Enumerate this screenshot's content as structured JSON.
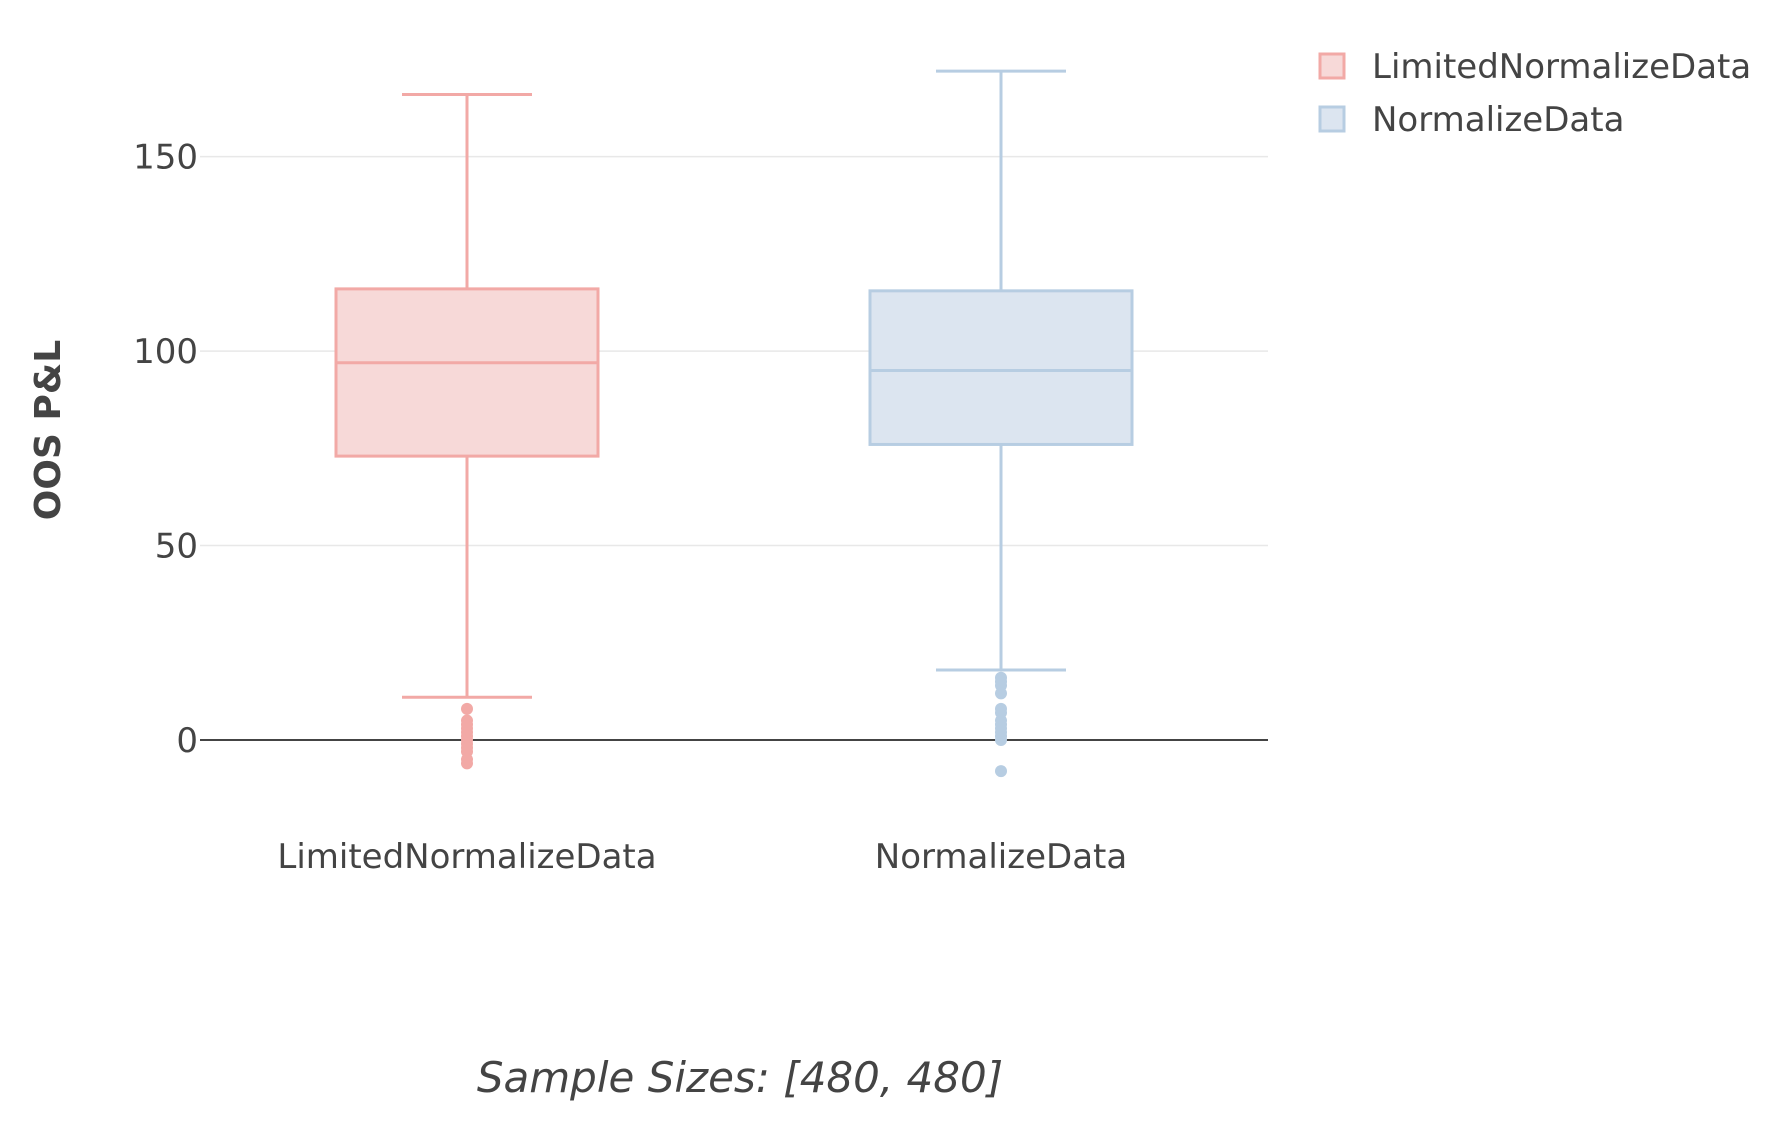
{
  "chart_data": {
    "type": "box",
    "title": "",
    "xlabel": "Sample Sizes: [480, 480]",
    "ylabel": "OOS P&L",
    "ylim": [
      -18,
      180
    ],
    "yticks": [
      0,
      50,
      100,
      150
    ],
    "grid": true,
    "legend_position": "top-right",
    "categories": [
      "LimitedNormalizeData",
      "NormalizeData"
    ],
    "series": [
      {
        "name": "LimitedNormalizeData",
        "category": "LimitedNormalizeData",
        "color": "#f2a9a6",
        "fill": "#f7d9d8",
        "whisker_low": 11,
        "q1": 73,
        "median": 97,
        "q3": 116,
        "whisker_high": 166,
        "outliers": [
          8,
          5,
          3,
          2,
          1,
          0,
          -1,
          -3,
          -5,
          -6,
          4,
          -2
        ]
      },
      {
        "name": "NormalizeData",
        "category": "NormalizeData",
        "color": "#b7cde2",
        "fill": "#dce5f0",
        "whisker_low": 18,
        "q1": 76,
        "median": 95,
        "q3": 115.5,
        "whisker_high": 172,
        "outliers": [
          16,
          15,
          14,
          12,
          8,
          7,
          5,
          4,
          3,
          2,
          1,
          0,
          -8
        ]
      }
    ]
  }
}
